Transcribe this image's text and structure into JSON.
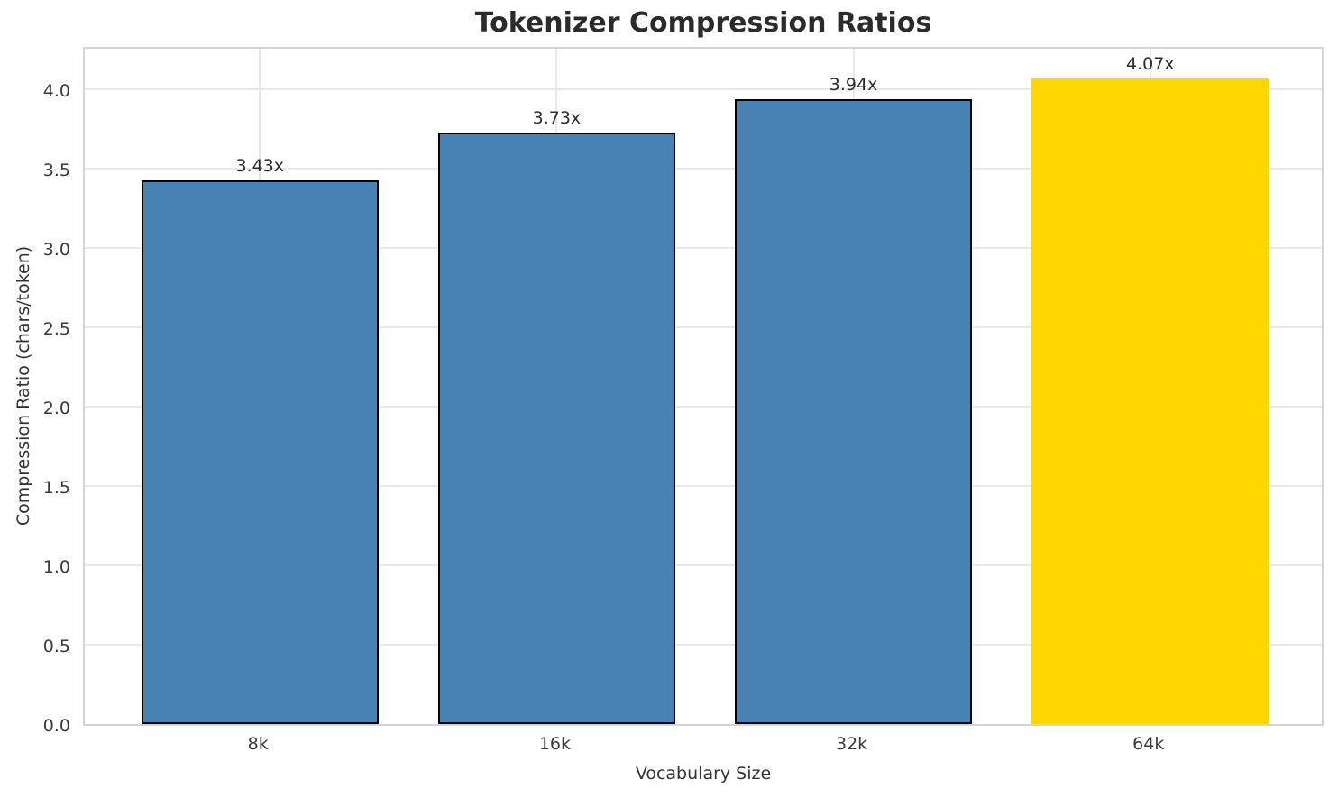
{
  "chart_data": {
    "type": "bar",
    "title": "Tokenizer Compression Ratios",
    "xlabel": "Vocabulary Size",
    "ylabel": "Compression Ratio (chars/token)",
    "categories": [
      "8k",
      "16k",
      "32k",
      "64k"
    ],
    "values": [
      3.43,
      3.73,
      3.94,
      4.07
    ],
    "bar_labels": [
      "3.43x",
      "3.73x",
      "3.94x",
      "4.07x"
    ],
    "bar_colors": [
      "#4682B4",
      "#4682B4",
      "#4682B4",
      "#FFD700"
    ],
    "bar_edge_colors": [
      "#000000",
      "#000000",
      "#000000",
      "none"
    ],
    "highlight_color": "#FFD700",
    "base_color": "#4682B4",
    "y_ticks": [
      "0.0",
      "0.5",
      "1.0",
      "1.5",
      "2.0",
      "2.5",
      "3.0",
      "3.5",
      "4.0"
    ],
    "ylim": [
      0,
      4.28
    ],
    "grid": true,
    "legend_position": "none",
    "background_color": "#ffffff"
  }
}
